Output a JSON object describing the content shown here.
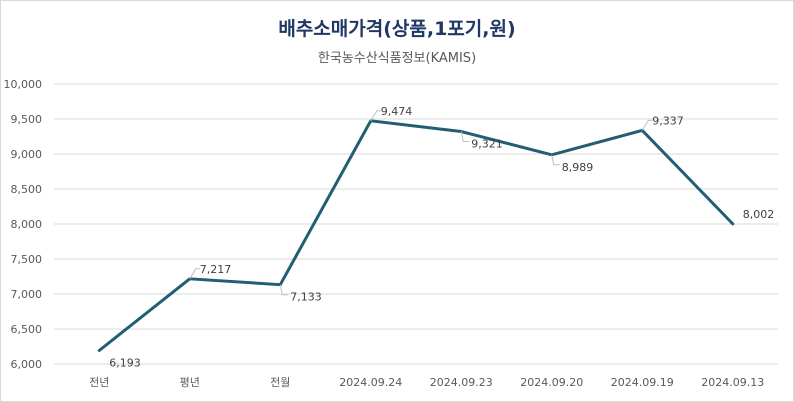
{
  "chart_data": {
    "type": "line",
    "title": "배추소매가격(상품,1포기,원)",
    "subtitle": "한국농수산식품정보(KAMIS)",
    "categories": [
      "전년",
      "평년",
      "전월",
      "2024.09.24",
      "2024.09.23",
      "2024.09.20",
      "2024.09.19",
      "2024.09.13"
    ],
    "series": [
      {
        "values": [
          6193,
          7217,
          7133,
          9474,
          9321,
          8989,
          9337,
          8002
        ]
      }
    ],
    "value_labels": [
      "6,193",
      "7,217",
      "7,133",
      "9,474",
      "9,321",
      "8,989",
      "9,337",
      "8,002"
    ],
    "ylim": [
      6000,
      10000
    ],
    "yticks": [
      6000,
      6500,
      7000,
      7500,
      8000,
      8500,
      9000,
      9500,
      10000
    ],
    "ytick_labels": [
      "6,000",
      "6,500",
      "7,000",
      "7,500",
      "8,000",
      "8,500",
      "9,000",
      "9,500",
      "10,000"
    ],
    "xlabel": "",
    "ylabel": "",
    "grid": true,
    "legend": "none",
    "line_color": "#215d73"
  }
}
